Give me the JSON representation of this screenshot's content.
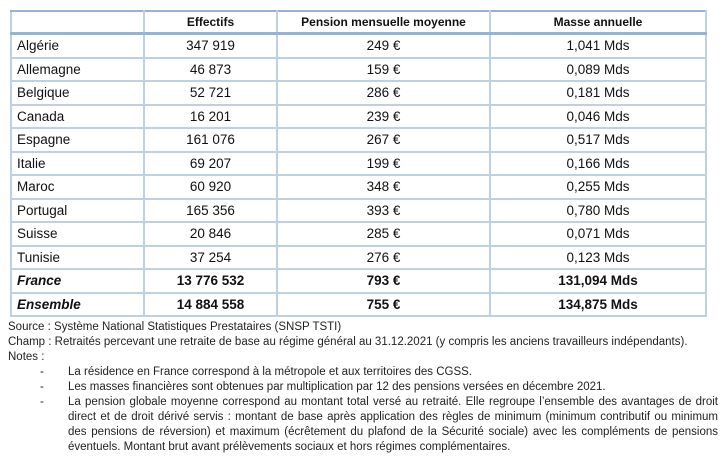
{
  "table": {
    "columns": [
      "",
      "Effectifs",
      "Pension mensuelle moyenne",
      "Masse annuelle"
    ],
    "rows": [
      {
        "label": "Algérie",
        "effectifs": "347 919",
        "pension": "249 €",
        "masse": "1,041 Mds",
        "total": false
      },
      {
        "label": "Allemagne",
        "effectifs": "46 873",
        "pension": "159 €",
        "masse": "0,089 Mds",
        "total": false
      },
      {
        "label": "Belgique",
        "effectifs": "52 721",
        "pension": "286 €",
        "masse": "0,181 Mds",
        "total": false
      },
      {
        "label": "Canada",
        "effectifs": "16 201",
        "pension": "239 €",
        "masse": "0,046 Mds",
        "total": false
      },
      {
        "label": "Espagne",
        "effectifs": "161 076",
        "pension": "267 €",
        "masse": "0,517 Mds",
        "total": false
      },
      {
        "label": "Italie",
        "effectifs": "69 207",
        "pension": "199 €",
        "masse": "0,166 Mds",
        "total": false
      },
      {
        "label": "Maroc",
        "effectifs": "60 920",
        "pension": "348 €",
        "masse": "0,255 Mds",
        "total": false
      },
      {
        "label": "Portugal",
        "effectifs": "165 356",
        "pension": "393 €",
        "masse": "0,780 Mds",
        "total": false
      },
      {
        "label": "Suisse",
        "effectifs": "20 846",
        "pension": "285 €",
        "masse": "0,071 Mds",
        "total": false
      },
      {
        "label": "Tunisie",
        "effectifs": "37 254",
        "pension": "276 €",
        "masse": "0,123 Mds",
        "total": false
      },
      {
        "label": "France",
        "effectifs": "13 776 532",
        "pension": "793 €",
        "masse": "131,094 Mds",
        "total": true
      },
      {
        "label": "Ensemble",
        "effectifs": "14 884 558",
        "pension": "755 €",
        "masse": "134,875 Mds",
        "total": true
      }
    ]
  },
  "footer": {
    "source": "Source : Système National Statistiques Prestataires (SNSP TSTI)",
    "champ": "Champ : Retraités percevant une retraite de base au régime général au 31.12.2021 (y compris les anciens travailleurs indépendants).",
    "notes_label": "Notes :",
    "note_marker": "-",
    "notes": [
      "La résidence en France correspond à la métropole et aux territoires des CGSS.",
      "Les masses financières sont obtenues par multiplication par 12 des pensions versées en décembre 2021.",
      "La pension globale moyenne correspond au montant total versé au retraité. Elle regroupe l’ensemble des avantages de droit direct et de droit dérivé servis : montant de base après application des règles de minimum (minimum contributif ou minimum des pensions de réversion) et maximum (écrêtement du plafond de la Sécurité sociale) avec les compléments de pensions éventuels. Montant brut avant prélèvements sociaux et hors régimes complémentaires."
    ]
  },
  "colors": {
    "border_light": "#bdd0e4",
    "border_dark": "#95b3d7",
    "text": "#111111"
  }
}
